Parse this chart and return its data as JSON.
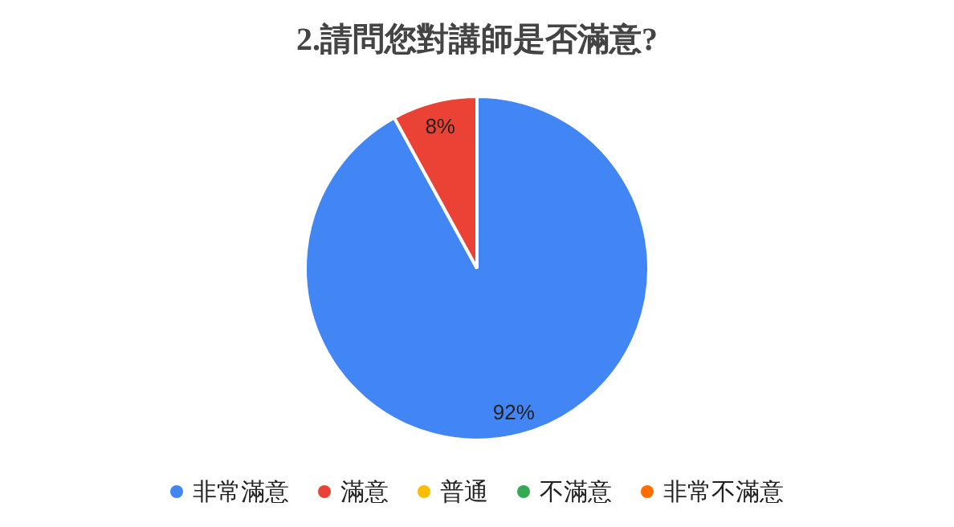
{
  "chart_data": {
    "type": "pie",
    "title": "2.請問您對講師是否滿意?",
    "categories": [
      "非常滿意",
      "滿意",
      "普通",
      "不滿意",
      "非常不滿意"
    ],
    "values": [
      92,
      8,
      0,
      0,
      0
    ],
    "colors": [
      "#4285f4",
      "#ea4335",
      "#fbbc04",
      "#34a853",
      "#ff6d01"
    ],
    "value_labels": [
      "92%",
      "8%",
      null,
      null,
      null
    ],
    "legend": "bottom"
  }
}
